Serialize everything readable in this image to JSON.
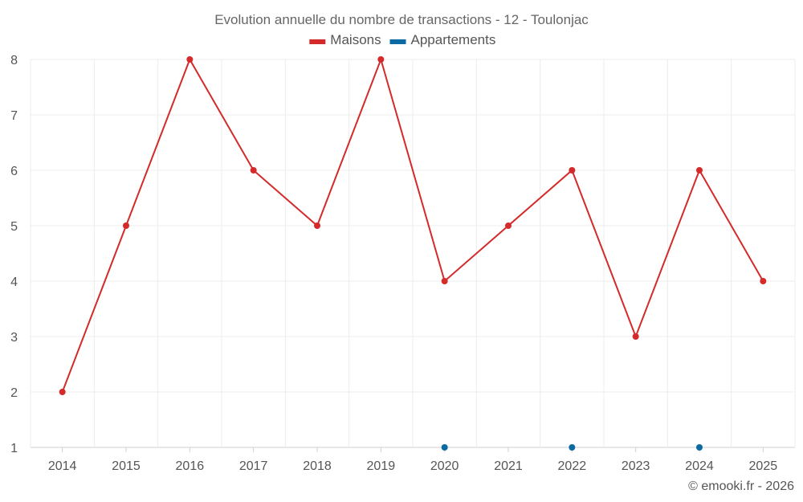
{
  "title": "Evolution annuelle du nombre de transactions - 12 - Toulonjac",
  "credit": "© emooki.fr - 2026",
  "chart_data": {
    "type": "line",
    "title": "Evolution annuelle du nombre de transactions - 12 - Toulonjac",
    "xlabel": "",
    "ylabel": "",
    "categories": [
      "2014",
      "2015",
      "2016",
      "2017",
      "2018",
      "2019",
      "2020",
      "2021",
      "2022",
      "2023",
      "2024",
      "2025"
    ],
    "ylim": [
      1,
      8
    ],
    "yticks": [
      "1",
      "2",
      "3",
      "4",
      "5",
      "6",
      "7",
      "8"
    ],
    "grid": true,
    "legend_position": "top-center",
    "series": [
      {
        "name": "Maisons",
        "color": "#d42a2a",
        "values": [
          2,
          5,
          8,
          6,
          5,
          8,
          4,
          5,
          6,
          3,
          6,
          4
        ]
      },
      {
        "name": "Appartements",
        "color": "#0b6aa2",
        "values": [
          null,
          null,
          null,
          null,
          null,
          null,
          1,
          null,
          1,
          null,
          1,
          null
        ]
      }
    ]
  }
}
